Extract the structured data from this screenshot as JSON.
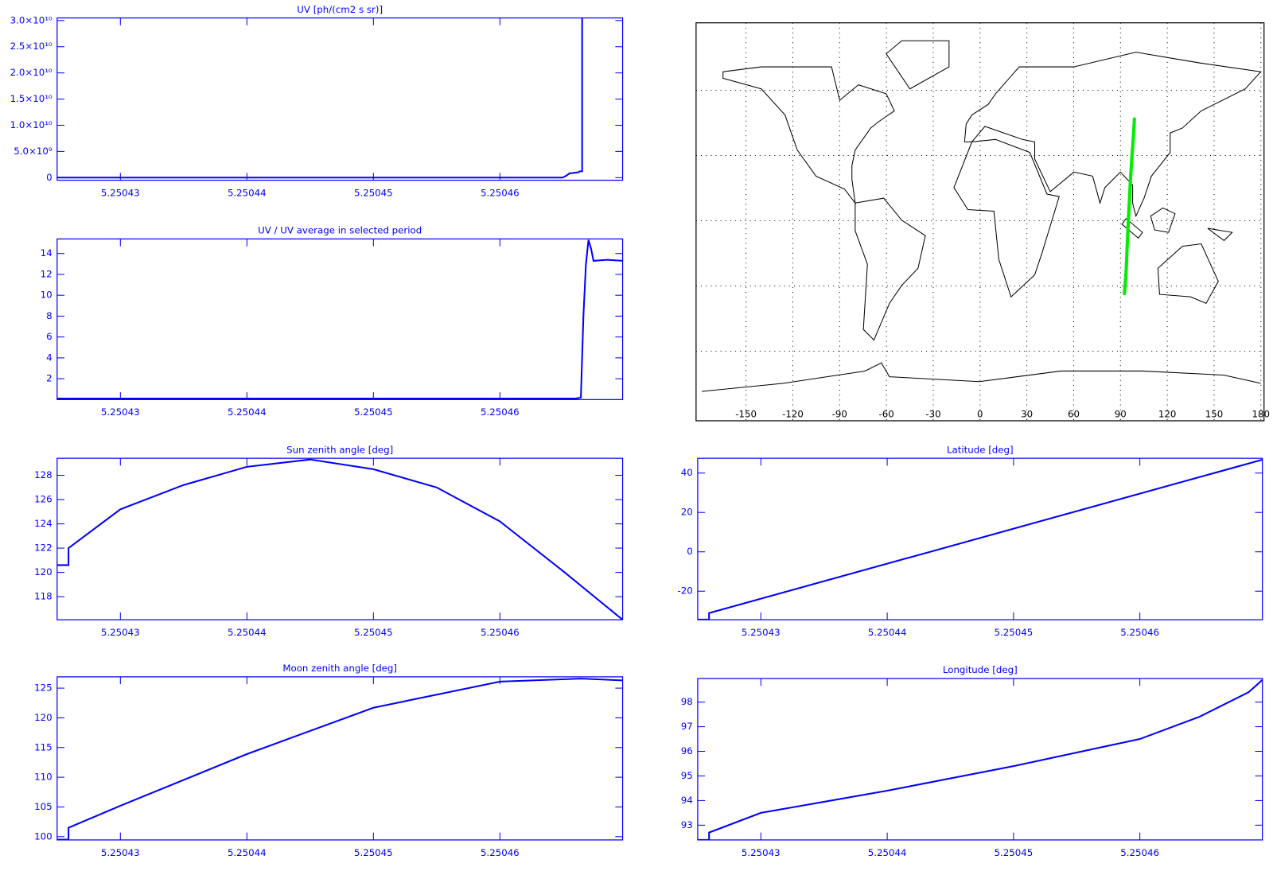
{
  "chart_data": [
    {
      "type": "line",
      "title": "UV [ph/(cm2 s sr)]",
      "color": "#0000ff",
      "x": [
        5.250425,
        5.25046495,
        5.2504652,
        5.2504655,
        5.2504662,
        5.2504663,
        5.2504665,
        5.2504665
      ],
      "values": [
        0,
        0,
        300000000,
        800000000,
        1000000000,
        1200000000,
        1200000000,
        30500000000
      ],
      "xlim": [
        5.250425,
        5.2504697
      ],
      "xticks": [
        5.25043,
        5.25044,
        5.25045,
        5.25046
      ],
      "ylim": [
        -500000000,
        30500000000
      ],
      "yticks": [
        0,
        {
          "value": 5000000000,
          "label": "5.0×10⁹"
        },
        {
          "value": 10000000000,
          "label": "1.0×10¹⁰"
        },
        {
          "value": 15000000000,
          "label": "1.5×10¹⁰"
        },
        {
          "value": 20000000000,
          "label": "2.0×10¹⁰"
        },
        {
          "value": 25000000000,
          "label": "2.5×10¹⁰"
        },
        {
          "value": 30000000000,
          "label": "3.0×10¹⁰"
        }
      ]
    },
    {
      "type": "line",
      "title": "UV / UV average in selected period",
      "color": "#0000ff",
      "x": [
        5.250425,
        5.250466,
        5.2504664,
        5.2504666,
        5.2504668,
        5.250467,
        5.2504672,
        5.2504674,
        5.2504685,
        5.2504697
      ],
      "values": [
        0.1,
        0.1,
        0.2,
        8,
        13,
        15.3,
        14.5,
        13.3,
        13.4,
        13.3
      ],
      "xlim": [
        5.250425,
        5.2504697
      ],
      "xticks": [
        5.25043,
        5.25044,
        5.25045,
        5.25046
      ],
      "ylim": [
        0,
        15.4
      ],
      "yticks": [
        2,
        4,
        6,
        8,
        10,
        12,
        14
      ]
    },
    {
      "type": "line",
      "title": "Sun zenith angle [deg]",
      "color": "#0000ff",
      "x": [
        5.250425,
        5.2504259,
        5.2504259,
        5.25043,
        5.250435,
        5.25044,
        5.250445,
        5.25045,
        5.250455,
        5.25046,
        5.250465,
        5.2504697
      ],
      "values": [
        120.6,
        120.6,
        122.0,
        125.2,
        127.2,
        128.7,
        129.3,
        128.5,
        127.0,
        124.2,
        120.1,
        116.1
      ],
      "xlim": [
        5.250425,
        5.2504697
      ],
      "xticks": [
        5.25043,
        5.25044,
        5.25045,
        5.25046
      ],
      "ylim": [
        116.1,
        129.4
      ],
      "yticks": [
        118,
        120,
        122,
        124,
        126,
        128
      ]
    },
    {
      "type": "line",
      "title": "Moon zenith angle [deg]",
      "color": "#0000ff",
      "x": [
        5.250425,
        5.2504259,
        5.2504259,
        5.25043,
        5.25044,
        5.25045,
        5.25046,
        5.2504664,
        5.2504697
      ],
      "values": [
        99.5,
        99.5,
        101.5,
        105.2,
        113.9,
        121.7,
        126.1,
        126.6,
        126.3
      ],
      "xlim": [
        5.250425,
        5.2504697
      ],
      "xticks": [
        5.25043,
        5.25044,
        5.25045,
        5.25046
      ],
      "ylim": [
        99.45,
        126.9
      ],
      "yticks": [
        100,
        105,
        110,
        115,
        120,
        125
      ]
    },
    {
      "type": "map",
      "color": "#00ee00",
      "x": [
        92.5,
        93.5,
        94.4,
        95.4,
        96.5,
        97.4,
        98.4,
        98.9
      ],
      "values": [
        -33.5,
        -25,
        -10,
        5,
        20,
        30,
        40,
        46.8
      ],
      "xlim": [
        -182,
        182
      ],
      "xticks": [
        -150,
        -120,
        -90,
        -60,
        -30,
        0,
        30,
        60,
        90,
        120,
        150,
        180
      ],
      "ylim": [
        -92,
        91
      ],
      "ygrid": [
        -60,
        -30,
        0,
        30,
        60
      ]
    },
    {
      "type": "line",
      "title": "Latitude [deg]",
      "color": "#0000ff",
      "x": [
        5.250425,
        5.2504259,
        5.2504259,
        5.2504697
      ],
      "values": [
        -34.4,
        -34.4,
        -31.1,
        46.8
      ],
      "xlim": [
        5.250425,
        5.2504697
      ],
      "xticks": [
        5.25043,
        5.25044,
        5.25045,
        5.25046
      ],
      "ylim": [
        -34.5,
        47.5
      ],
      "yticks": [
        -20,
        0,
        20,
        40
      ]
    },
    {
      "type": "line",
      "title": "Longitude [deg]",
      "color": "#0000ff",
      "x": [
        5.250425,
        5.2504259,
        5.2504259,
        5.25043,
        5.25044,
        5.25045,
        5.25046,
        5.2504647,
        5.2504686,
        5.2504697
      ],
      "values": [
        92.4,
        92.4,
        92.7,
        93.5,
        94.4,
        95.4,
        96.5,
        97.4,
        98.4,
        98.9
      ],
      "xlim": [
        5.250425,
        5.2504697
      ],
      "xticks": [
        5.25043,
        5.25044,
        5.25045,
        5.25046
      ],
      "ylim": [
        92.4,
        98.96
      ],
      "yticks": [
        93,
        94,
        95,
        96,
        97,
        98
      ]
    }
  ]
}
